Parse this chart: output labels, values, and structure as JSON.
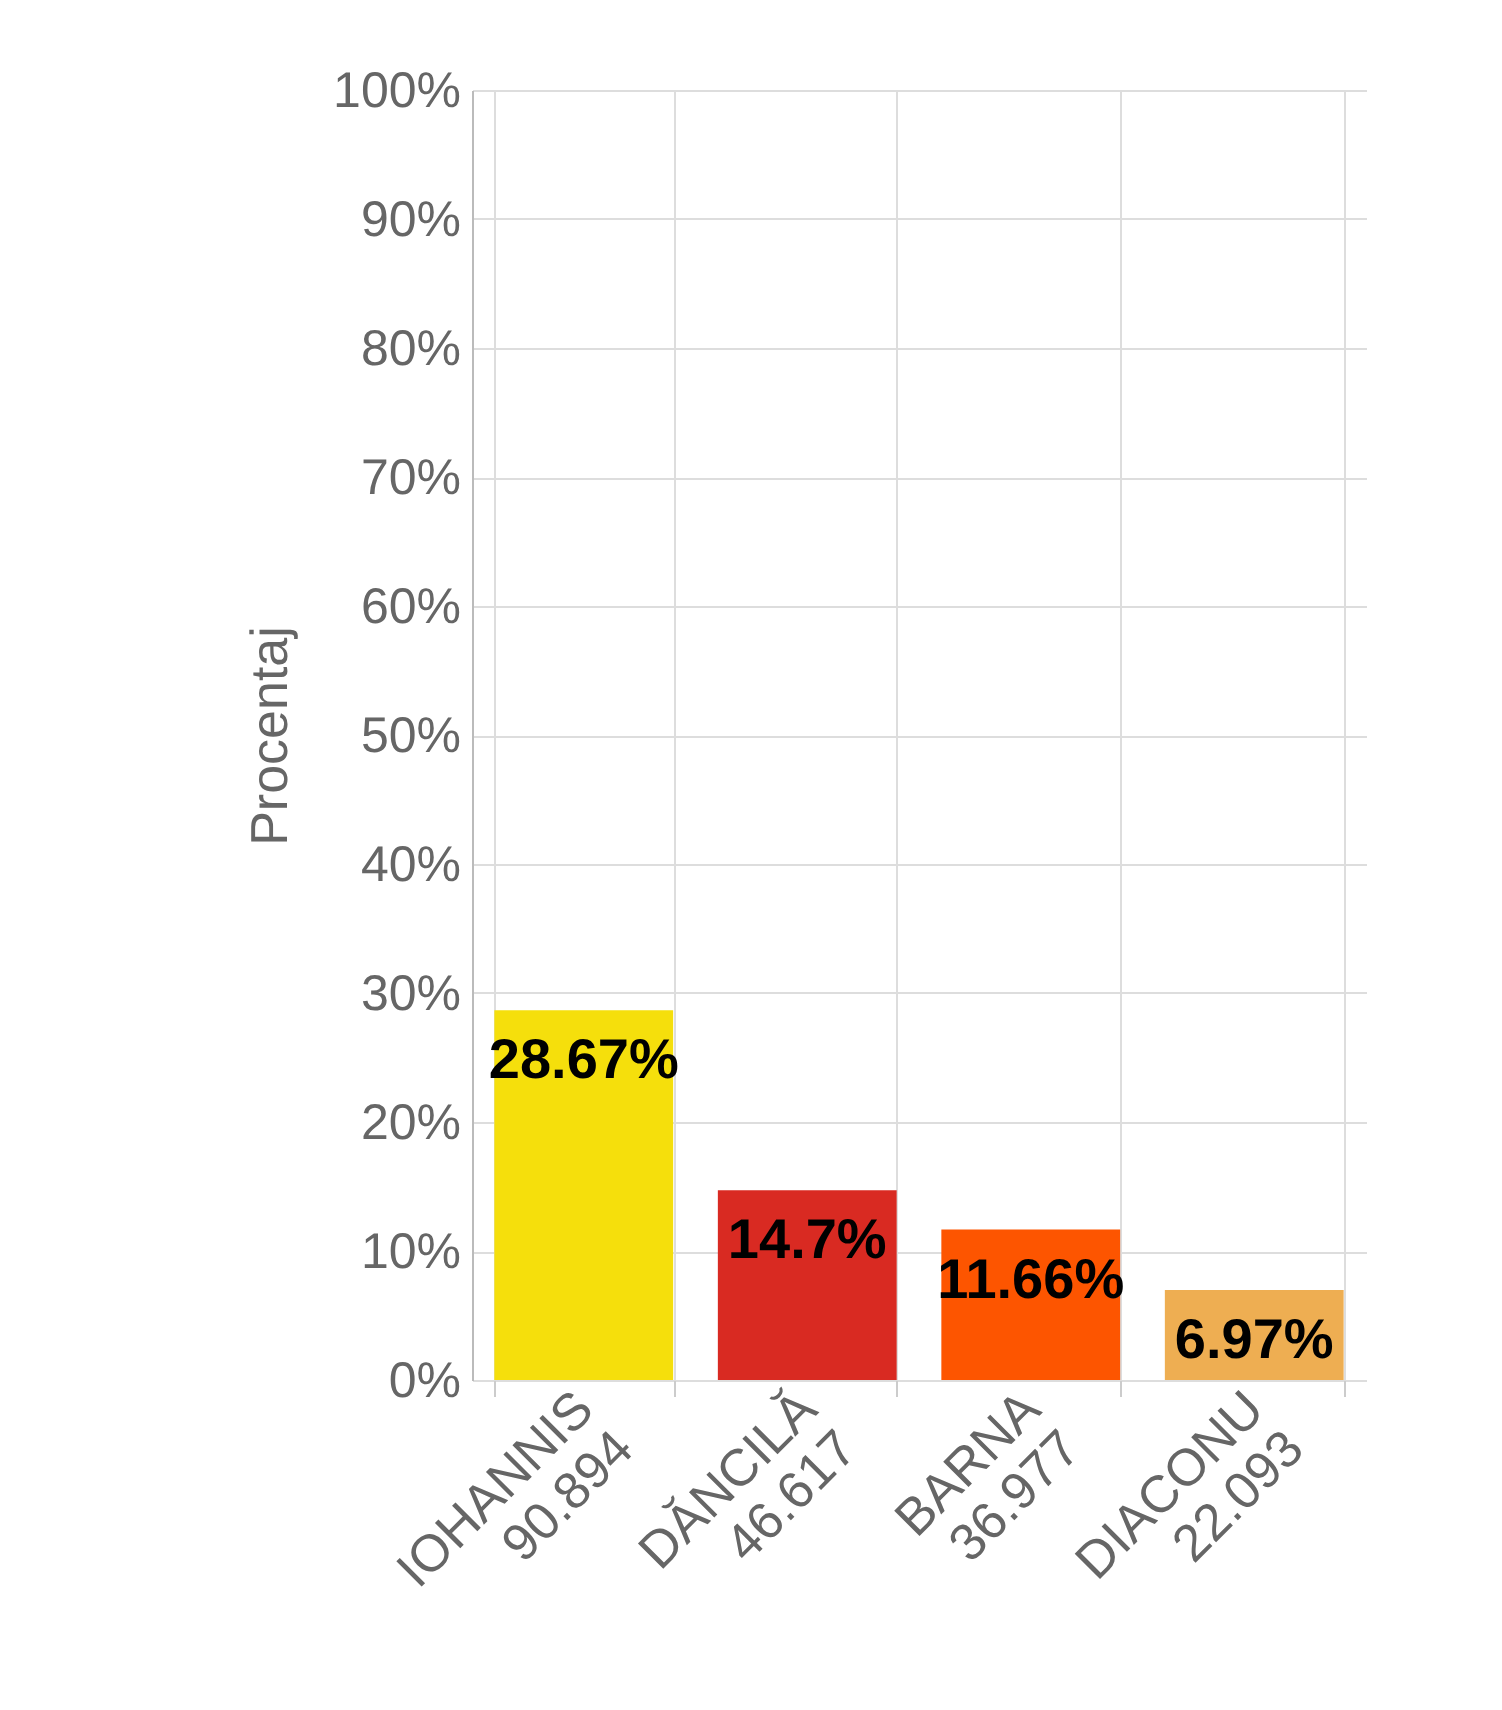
{
  "chart_data": {
    "type": "bar",
    "ylabel": "Procentaj",
    "categories": [
      "IOHANNIS\n90.894",
      "DĂNCILĂ\n46.617",
      "BARNA\n36.977",
      "DIACONU\n22.093"
    ],
    "values": [
      28.67,
      14.7,
      11.66,
      6.97
    ],
    "colors": [
      "#f5df0c",
      "#d92a22",
      "#fd5500",
      "#eeae52"
    ],
    "value_labels": [
      "28.67%",
      "14.7%",
      "11.66%",
      "6.97%"
    ],
    "ylim": [
      0,
      100
    ],
    "yticks": [
      {
        "value": 0,
        "label": "0%"
      },
      {
        "value": 10,
        "label": "10%"
      },
      {
        "value": 20,
        "label": "20%"
      },
      {
        "value": 30,
        "label": "30%"
      },
      {
        "value": 40,
        "label": "40%"
      },
      {
        "value": 50,
        "label": "50%"
      },
      {
        "value": 60,
        "label": "60%"
      },
      {
        "value": 70,
        "label": "70%"
      },
      {
        "value": 80,
        "label": "80%"
      },
      {
        "value": 90,
        "label": "90%"
      },
      {
        "value": 100,
        "label": "100%"
      }
    ],
    "grid": true
  }
}
